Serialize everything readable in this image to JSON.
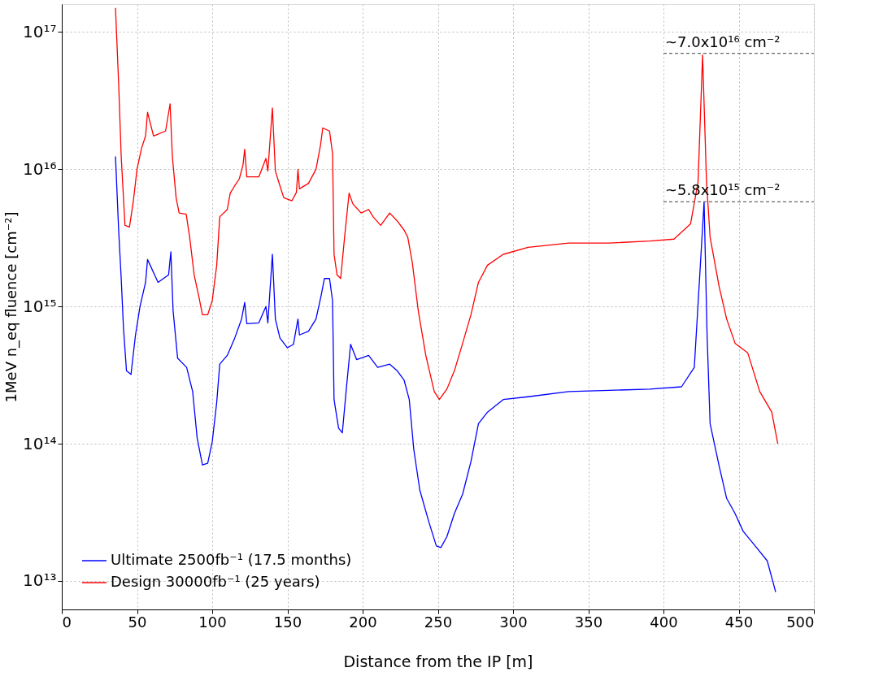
{
  "chart_data": {
    "type": "line",
    "xlabel": "Distance from the IP [m]",
    "ylabel": "1MeV n_eq fluence [cm⁻²]",
    "xlim": [
      0,
      500
    ],
    "xticks": [
      0,
      50,
      100,
      150,
      200,
      250,
      300,
      350,
      400,
      450,
      500
    ],
    "ylim": [
      6200000000000.0,
      1.6e+17
    ],
    "log": "y",
    "yticks": [
      {
        "value": 10000000000000.0,
        "label": "10¹³"
      },
      {
        "value": 100000000000000.0,
        "label": "10¹⁴"
      },
      {
        "value": 1000000000000000.0,
        "label": "10¹⁵"
      },
      {
        "value": 1e+16,
        "label": "10¹⁶"
      },
      {
        "value": 1e+17,
        "label": "10¹⁷"
      }
    ],
    "grid": true,
    "legend": "bottom left",
    "marker": "none",
    "line_style": "solid",
    "ref_lines": [
      {
        "axis": "y",
        "value": 7e+16,
        "label": "~7.0x10¹⁶ cm⁻²",
        "color": "#666666",
        "line_style": "dashed"
      },
      {
        "axis": "y",
        "value": 5800000000000000.0,
        "label": "~5.8x10¹⁵ cm⁻²",
        "color": "#666666",
        "line_style": "dashed"
      }
    ],
    "series": [
      {
        "name": "Ultimate 2500fb⁻¹ (17.5 months)",
        "color": "#0000ff",
        "x": [
          35.7,
          37.8,
          39.5,
          41,
          43,
          46,
          49,
          52,
          55.7,
          57,
          64,
          71,
          72.5,
          74,
          77,
          83,
          87,
          90,
          93.5,
          97,
          100,
          103,
          105,
          110,
          115,
          119.5,
          121.6,
          123,
          131,
          135.7,
          137,
          140,
          142,
          145,
          150,
          154,
          157,
          158,
          164,
          169,
          172.4,
          174.6,
          178,
          180,
          181,
          184,
          186.5,
          189,
          192,
          196,
          204,
          210,
          218,
          223,
          227.6,
          231,
          234,
          238,
          244,
          249,
          252,
          256,
          261,
          266.5,
          272,
          277,
          283,
          293.5,
          310,
          337,
          364,
          391,
          412,
          420.5,
          424,
          427,
          429,
          431,
          437,
          442,
          447.6,
          453,
          461,
          469,
          474.6
        ],
        "values": [
          1.24e+16,
          3600000000000000.0,
          1600000000000000.0,
          700000000000000.0,
          340000000000000.0,
          320000000000000.0,
          620000000000000.0,
          1000000000000000.0,
          1500000000000000.0,
          2200000000000000.0,
          1500000000000000.0,
          1700000000000000.0,
          2500000000000000.0,
          930000000000000.0,
          420000000000000.0,
          360000000000000.0,
          240000000000000.0,
          110000000000000.0,
          70000000000000.0,
          72000000000000.0,
          103000000000000.0,
          200000000000000.0,
          380000000000000.0,
          440000000000000.0,
          590000000000000.0,
          810000000000000.0,
          1070000000000000.0,
          750000000000000.0,
          760000000000000.0,
          1000000000000000.0,
          760000000000000.0,
          2400000000000000.0,
          810000000000000.0,
          590000000000000.0,
          500000000000000.0,
          530000000000000.0,
          810000000000000.0,
          620000000000000.0,
          660000000000000.0,
          810000000000000.0,
          1200000000000000.0,
          1600000000000000.0,
          1600000000000000.0,
          1100000000000000.0,
          210000000000000.0,
          130000000000000.0,
          120000000000000.0,
          240000000000000.0,
          530000000000000.0,
          410000000000000.0,
          440000000000000.0,
          360000000000000.0,
          380000000000000.0,
          340000000000000.0,
          290000000000000.0,
          210000000000000.0,
          91000000000000.0,
          46000000000000.0,
          27000000000000.0,
          18000000000000.0,
          17500000000000.0,
          21000000000000.0,
          31000000000000.0,
          43000000000000.0,
          74000000000000.0,
          140000000000000.0,
          170000000000000.0,
          210000000000000.0,
          220000000000000.0,
          240000000000000.0,
          245000000000000.0,
          250000000000000.0,
          260000000000000.0,
          360000000000000.0,
          1600000000000000.0,
          5800000000000000.0,
          620000000000000.0,
          140000000000000.0,
          69000000000000.0,
          40000000000000.0,
          31000000000000.0,
          23000000000000.0,
          18000000000000.0,
          14000000000000.0,
          8300000000000.0
        ]
      },
      {
        "name": "Design 30000fb⁻¹ (25 years)",
        "color": "#ff0000",
        "x": [
          35.7,
          37.8,
          39.5,
          42,
          45,
          47.6,
          50,
          53,
          55.7,
          57,
          61,
          69,
          72,
          73.5,
          76,
          78,
          82.7,
          85,
          88,
          91,
          93.5,
          97,
          100,
          103,
          105,
          110,
          112,
          115,
          118,
          120.5,
          121.6,
          123,
          131,
          135.7,
          137,
          140,
          142,
          145,
          147.6,
          153,
          156,
          157,
          158,
          164,
          169,
          172,
          173.5,
          178,
          180,
          181,
          183,
          185.4,
          188,
          191,
          193.5,
          199,
          204,
          207,
          212,
          218,
          223,
          227.6,
          230,
          233,
          237,
          242,
          247.6,
          251,
          256,
          261,
          266.5,
          272,
          277,
          283,
          293.5,
          310,
          337,
          364,
          391,
          407,
          418,
          423,
          426,
          428.6,
          431,
          437,
          442,
          447.6,
          456,
          464,
          472,
          476
        ],
        "values": [
          1.5e+17,
          4.2e+16,
          1.24e+16,
          3900000000000000.0,
          3800000000000000.0,
          5900000000000000.0,
          1e+16,
          1.42e+16,
          1.75e+16,
          2.6e+16,
          1.75e+16,
          1.9e+16,
          3e+16,
          1.24e+16,
          6200000000000000.0,
          4800000000000000.0,
          4700000000000000.0,
          3200000000000000.0,
          1700000000000000.0,
          1200000000000000.0,
          870000000000000.0,
          870000000000000.0,
          1100000000000000.0,
          2000000000000000.0,
          4500000000000000.0,
          5100000000000000.0,
          6700000000000000.0,
          7600000000000000.0,
          8500000000000000.0,
          1.08e+16,
          1.4e+16,
          8800000000000000.0,
          8800000000000000.0,
          1.2e+16,
          9700000000000000.0,
          2.8e+16,
          9700000000000000.0,
          7600000000000000.0,
          6200000000000000.0,
          5900000000000000.0,
          6800000000000000.0,
          1e+16,
          7200000000000000.0,
          7900000000000000.0,
          1e+16,
          1.5e+16,
          2e+16,
          1.9e+16,
          1.3e+16,
          2400000000000000.0,
          1700000000000000.0,
          1600000000000000.0,
          3200000000000000.0,
          6700000000000000.0,
          5600000000000000.0,
          4800000000000000.0,
          5100000000000000.0,
          4500000000000000.0,
          3900000000000000.0,
          4800000000000000.0,
          4200000000000000.0,
          3600000000000000.0,
          3200000000000000.0,
          2100000000000000.0,
          930000000000000.0,
          440000000000000.0,
          240000000000000.0,
          210000000000000.0,
          250000000000000.0,
          340000000000000.0,
          540000000000000.0,
          870000000000000.0,
          1500000000000000.0,
          2000000000000000.0,
          2400000000000000.0,
          2700000000000000.0,
          2900000000000000.0,
          2900000000000000.0,
          3000000000000000.0,
          3100000000000000.0,
          4000000000000000.0,
          8100000000000000.0,
          6.8e+16,
          8200000000000000.0,
          3200000000000000.0,
          1400000000000000.0,
          810000000000000.0,
          540000000000000.0,
          460000000000000.0,
          240000000000000.0,
          170000000000000.0,
          100000000000000.0
        ]
      }
    ]
  }
}
